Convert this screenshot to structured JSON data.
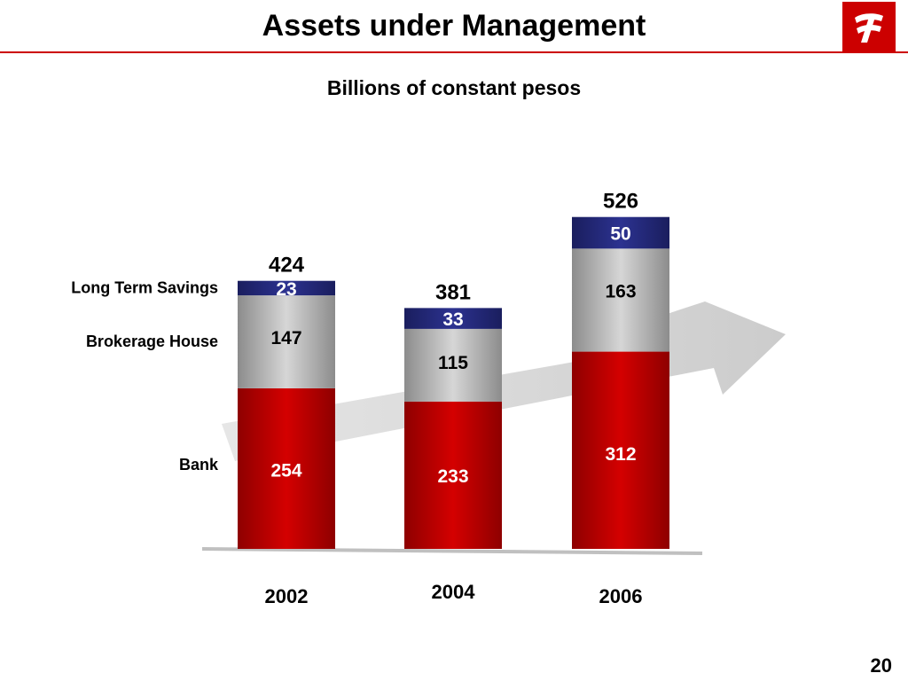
{
  "slide": {
    "title": "Assets under Management",
    "page_number": "20",
    "logo": "banorte-logo",
    "colors": {
      "accent": "#cc0000",
      "bank": "#c00000",
      "brokerage": "#b0b0b0",
      "long_term_savings": "#22287a"
    }
  },
  "chart_data": {
    "type": "bar",
    "stacked": true,
    "title": "Billions of constant pesos",
    "categories": [
      "2002",
      "2004",
      "2006"
    ],
    "series": [
      {
        "name": "Bank",
        "values": [
          254,
          233,
          312
        ],
        "color": "#c00000"
      },
      {
        "name": "Brokerage House",
        "values": [
          147,
          115,
          163
        ],
        "color": "#b0b0b0"
      },
      {
        "name": "Long Term Savings",
        "values": [
          23,
          33,
          50
        ],
        "color": "#22287a"
      }
    ],
    "totals": [
      424,
      381,
      526
    ],
    "legend": "left",
    "ylim": [
      0,
      526
    ],
    "grid": false,
    "background_arrow": "growth-arrow"
  }
}
